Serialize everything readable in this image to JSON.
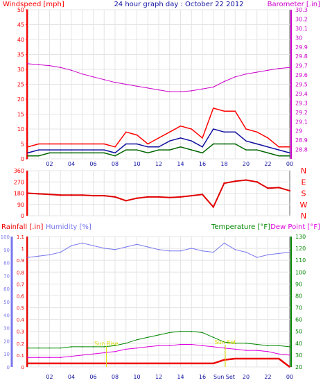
{
  "title": "24 hour graph day : October 22 2012",
  "colors": {
    "wind": "#ff0000",
    "gust_dark": "#006600",
    "wind_avg": "#1010a0",
    "baro": "#cc00cc",
    "direction": "#e00000",
    "rain": "#ee0000",
    "humidity": "#7777ee",
    "temperature": "#008800",
    "dewpoint": "#dd00dd",
    "grid": "#e4e4e4",
    "frame": "#666666",
    "annotation": "#dddd00"
  },
  "chart_data": [
    {
      "type": "line",
      "name": "wind_baro",
      "title": "24 hour graph day : October 22 2012",
      "ylabel_left": "Windspeed [mph]",
      "ylabel_right": "Barometer [.in]",
      "ylim_left": [
        0,
        50
      ],
      "ylim_right": [
        28.7,
        30.3
      ],
      "yticks_left": [
        "0",
        "5",
        "10",
        "15",
        "20",
        "25",
        "30",
        "35",
        "40",
        "45",
        "50"
      ],
      "yticks_right": [
        "28.8",
        "28.9",
        "29",
        "29.1",
        "29.2",
        "29.3",
        "29.4",
        "29.5",
        "29.6",
        "29.7",
        "29.8",
        "29.9",
        "30",
        "30.1",
        "30.2",
        "30.3"
      ],
      "xticks": [
        "02",
        "04",
        "06",
        "08",
        "10",
        "12",
        "14",
        "16",
        "18",
        "20",
        "22",
        "00"
      ],
      "x": [
        0,
        1,
        2,
        3,
        4,
        5,
        6,
        7,
        8,
        9,
        10,
        11,
        12,
        13,
        14,
        15,
        16,
        17,
        18,
        19,
        20,
        21,
        22,
        23,
        24
      ],
      "series": [
        {
          "key": "gust",
          "values": [
            4,
            5,
            5,
            5,
            5,
            5,
            5,
            5,
            4,
            9,
            8,
            5,
            7,
            9,
            11,
            10,
            7,
            17,
            16,
            16,
            10,
            9,
            7,
            4,
            4
          ]
        },
        {
          "key": "wind_avg",
          "values": [
            2,
            3,
            3,
            3,
            3,
            3,
            3,
            3,
            2,
            5,
            5,
            4,
            4,
            6,
            7,
            6,
            4,
            10,
            9,
            9,
            6,
            5,
            4,
            3,
            2
          ]
        },
        {
          "key": "wind_min",
          "values": [
            1,
            1,
            2,
            2,
            2,
            2,
            2,
            2,
            1,
            3,
            3,
            2,
            3,
            3,
            4,
            3,
            2,
            5,
            5,
            5,
            3,
            3,
            2,
            1,
            1
          ]
        },
        {
          "key": "barometer",
          "values": [
            29.72,
            29.71,
            29.7,
            29.68,
            29.65,
            29.61,
            29.58,
            29.55,
            29.52,
            29.5,
            29.48,
            29.46,
            29.44,
            29.42,
            29.42,
            29.43,
            29.45,
            29.47,
            29.53,
            29.58,
            29.61,
            29.63,
            29.65,
            29.67,
            29.68
          ]
        }
      ]
    },
    {
      "type": "line",
      "name": "direction",
      "ylabel_right": [
        "N",
        "W",
        "S",
        "E",
        "N"
      ],
      "ylim": [
        0,
        360
      ],
      "yticks": [
        "0",
        "90",
        "180",
        "270",
        "360"
      ],
      "x": [
        0,
        1,
        2,
        3,
        4,
        5,
        6,
        7,
        8,
        9,
        10,
        11,
        12,
        13,
        14,
        15,
        16,
        17,
        18,
        19,
        20,
        21,
        22,
        23,
        24
      ],
      "values": [
        180,
        175,
        170,
        165,
        165,
        165,
        160,
        160,
        150,
        120,
        140,
        150,
        150,
        145,
        150,
        160,
        170,
        70,
        260,
        275,
        285,
        270,
        220,
        225,
        200
      ]
    },
    {
      "type": "line",
      "name": "rain_humidity_temp",
      "ylabel_left_outer": "Rainfall [.in]",
      "ylabel_left": "Humidity [%]",
      "ylabel_right": "Temperature [°F]",
      "ylabel_right2": "Dew Point [°F]",
      "ylim_humidity": [
        0,
        100
      ],
      "ylim_rain": [
        0,
        1.1
      ],
      "ylim_temp": [
        20,
        130
      ],
      "yticks_humidity": [
        "0",
        "10",
        "20",
        "30",
        "40",
        "50",
        "60",
        "70",
        "80",
        "90",
        "100"
      ],
      "yticks_rain": [
        "0",
        "0.1",
        "0.2",
        "0.3",
        "0.4",
        "0.5",
        "0.6",
        "0.7",
        "0.8",
        "0.9",
        "1",
        "1.1"
      ],
      "yticks_temp": [
        "20",
        "30",
        "40",
        "50",
        "60",
        "70",
        "80",
        "90",
        "100",
        "110",
        "120",
        "130"
      ],
      "xticks": [
        "02",
        "04",
        "06",
        "08",
        "10",
        "12",
        "14",
        "16",
        "Sun Set",
        "20",
        "22",
        "00"
      ],
      "annotations": [
        "Sun Rise",
        "Sun Set"
      ],
      "x": [
        0,
        1,
        2,
        3,
        4,
        5,
        6,
        7,
        8,
        9,
        10,
        11,
        12,
        13,
        14,
        15,
        16,
        17,
        18,
        19,
        20,
        21,
        22,
        23,
        24
      ],
      "series": [
        {
          "key": "humidity",
          "values": [
            84,
            85,
            86,
            88,
            93,
            95,
            93,
            91,
            90,
            92,
            94,
            92,
            90,
            89,
            89,
            91,
            89,
            88,
            95,
            90,
            88,
            84,
            86,
            87,
            88
          ]
        },
        {
          "key": "temperature",
          "values": [
            36,
            36,
            36,
            36,
            37,
            37,
            37,
            37,
            38,
            40,
            43,
            45,
            47,
            49,
            50,
            50,
            49,
            45,
            41,
            40,
            40,
            39,
            38,
            38,
            37
          ]
        },
        {
          "key": "dewpoint",
          "values": [
            28,
            28,
            28,
            28,
            29,
            30,
            31,
            32,
            33,
            35,
            36,
            37,
            38,
            38,
            39,
            39,
            38,
            37,
            36,
            35,
            34,
            34,
            33,
            31,
            30
          ]
        },
        {
          "key": "rainfall",
          "values": [
            0.03,
            0.03,
            0.03,
            0.03,
            0.03,
            0.03,
            0.03,
            0.03,
            0.03,
            0.03,
            0.03,
            0.03,
            0.03,
            0.03,
            0.03,
            0.03,
            0.03,
            0.03,
            0.06,
            0.07,
            0.07,
            0.07,
            0.07,
            0.07,
            0
          ]
        }
      ]
    }
  ]
}
